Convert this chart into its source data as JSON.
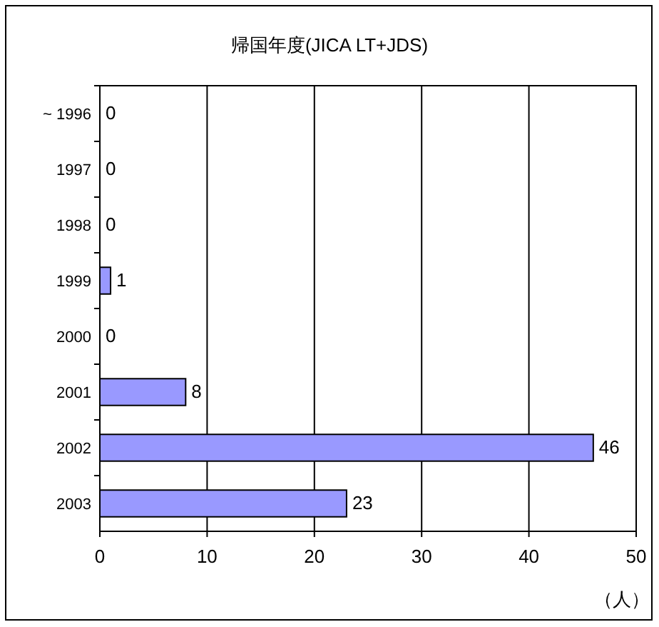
{
  "chart_data": {
    "type": "bar",
    "orientation": "horizontal",
    "title": "帰国年度(JICA LT+JDS)",
    "xlabel": "（人）",
    "categories": [
      "~ 1996",
      "1997",
      "1998",
      "1999",
      "2000",
      "2001",
      "2002",
      "2003"
    ],
    "values": [
      0,
      0,
      0,
      1,
      0,
      8,
      46,
      23
    ],
    "color": "#9999ff",
    "xlim": [
      0,
      50
    ],
    "xticks": [
      0,
      10,
      20,
      30,
      40,
      50
    ],
    "grid": "x",
    "data_labels": true
  }
}
